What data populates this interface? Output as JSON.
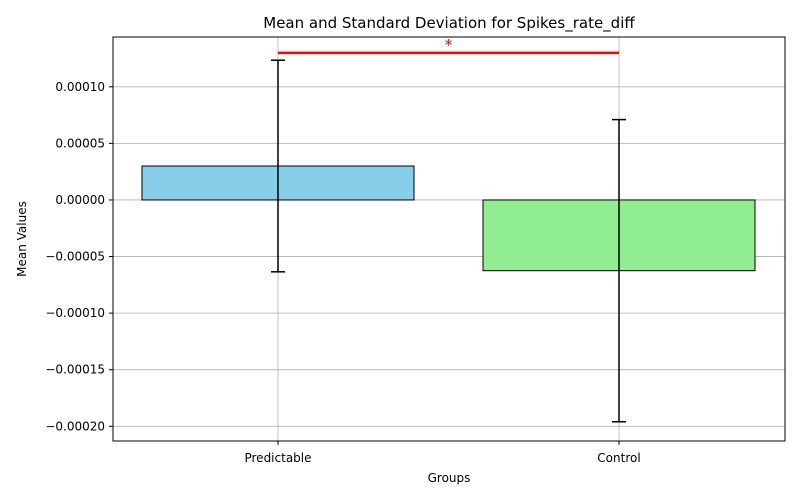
{
  "chart_data": {
    "type": "bar",
    "title": "Mean and Standard Deviation for Spikes_rate_diff",
    "xlabel": "Groups",
    "ylabel": "Mean Values",
    "categories": [
      "Predictable",
      "Control"
    ],
    "values": [
      3e-05,
      -6.25e-05
    ],
    "errors": [
      9.35e-05,
      0.0001335
    ],
    "colors": [
      "#87ceeb",
      "#90ee90"
    ],
    "ylim": [
      -0.000213,
      0.000144
    ],
    "yticks": [
      0.0001,
      5e-05,
      0.0,
      -5e-05,
      -0.0001,
      -0.00015,
      -0.0002
    ],
    "ytick_labels": [
      "0.00010",
      "0.00005",
      "0.00000",
      "−0.00005",
      "−0.00010",
      "−0.00015",
      "−0.00020"
    ],
    "grid": true,
    "significance": {
      "label": "*",
      "y": 0.00013,
      "color": "#ff0000"
    }
  }
}
